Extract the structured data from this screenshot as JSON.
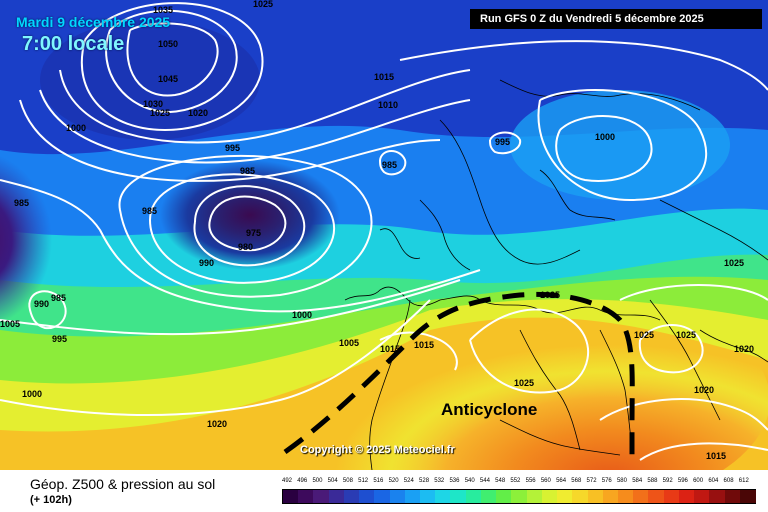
{
  "header": {
    "date": "Mardi 9 décembre 2025",
    "local_time": "7:00 locale",
    "run": "Run GFS 0 Z du Vendredi 5 décembre 2025"
  },
  "map": {
    "feature_label": "Anticyclone",
    "copyright": "Copyright © 2025 Meteociel.fr",
    "isobar_labels": [
      "1035",
      "1050",
      "1045",
      "1030",
      "1025",
      "1020",
      "1025",
      "1015",
      "1010",
      "1000",
      "995",
      "995",
      "985",
      "985",
      "985",
      "1000",
      "985",
      "975",
      "980",
      "990",
      "990",
      "985",
      "995",
      "1005",
      "1000",
      "1005",
      "1015",
      "1015",
      "1025",
      "1025",
      "1025",
      "1025",
      "1020",
      "1020",
      "1000",
      "1020",
      "1015",
      "1025"
    ]
  },
  "legend": {
    "title": "Géop. Z500 & pression au sol",
    "subtitle": "(+ 102h)",
    "scale_values": [
      "492",
      "496",
      "500",
      "504",
      "508",
      "512",
      "516",
      "520",
      "524",
      "528",
      "532",
      "536",
      "540",
      "544",
      "548",
      "552",
      "556",
      "560",
      "564",
      "568",
      "572",
      "576",
      "580",
      "584",
      "588",
      "592",
      "596",
      "600",
      "604",
      "608",
      "612"
    ],
    "scale_colors": [
      "#2a0040",
      "#3d0a5c",
      "#4a1a78",
      "#3a2a98",
      "#2a3cb4",
      "#1e4fd0",
      "#1a66e4",
      "#1a82ee",
      "#1aa0f4",
      "#1cbcf2",
      "#1ed6e6",
      "#1ee6c8",
      "#28ec9e",
      "#40ee70",
      "#62ee48",
      "#8cf03a",
      "#b4f238",
      "#d8f232",
      "#f0ec30",
      "#f6d82a",
      "#f8c024",
      "#f8a620",
      "#f68c1c",
      "#f2701a",
      "#ee5418",
      "#e83a16",
      "#dc2214",
      "#c01812",
      "#981010",
      "#700a0a",
      "#4a0606"
    ]
  }
}
